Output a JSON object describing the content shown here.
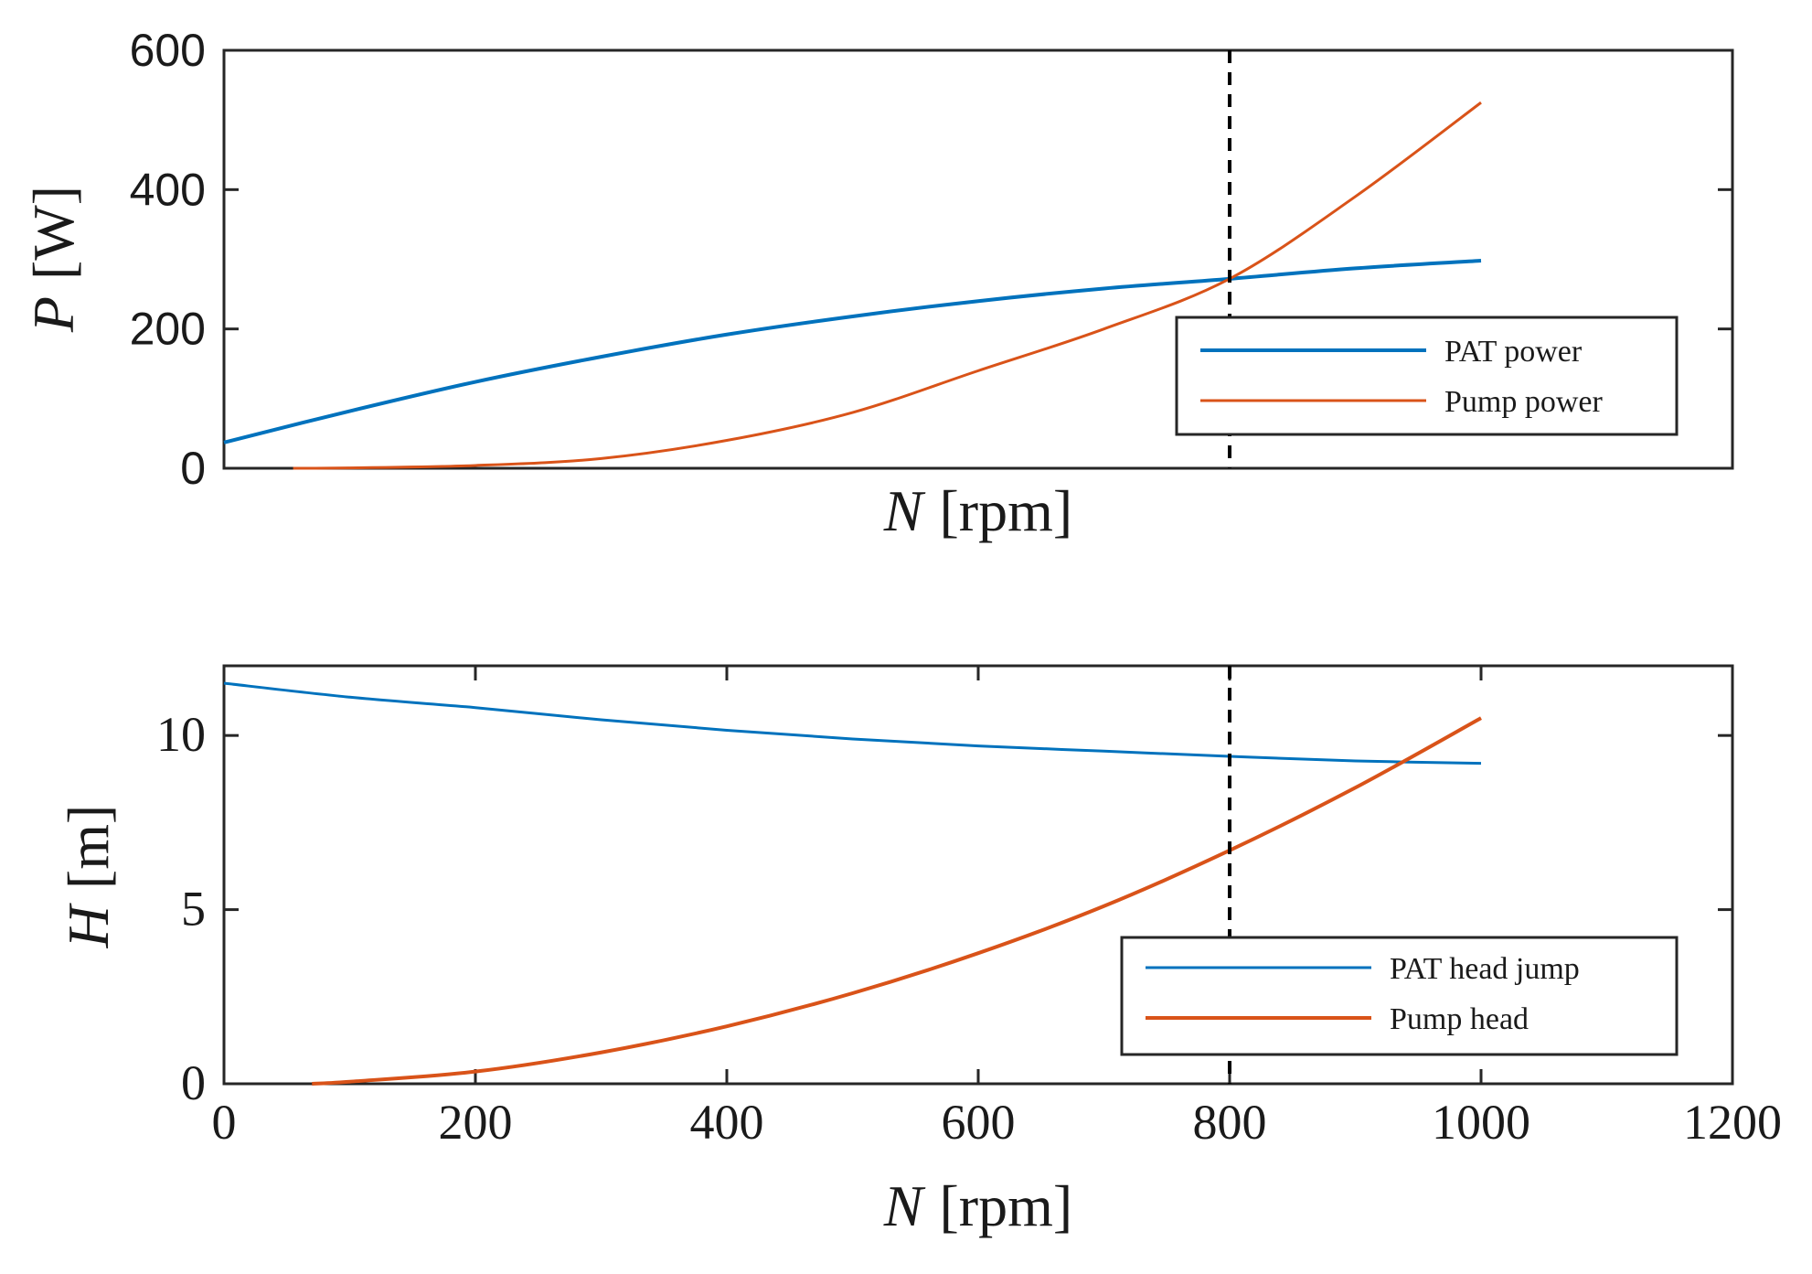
{
  "chart_data": [
    {
      "type": "line",
      "id": "power",
      "xlabel_var": "N",
      "xlabel_unit": "[rpm]",
      "ylabel_var": "P",
      "ylabel_unit": "[W]",
      "xlim": [
        0,
        1200
      ],
      "ylim": [
        0,
        600
      ],
      "xticks": [],
      "yticks": [
        0,
        200,
        400,
        600
      ],
      "ytick_labels": [
        "0",
        "200",
        "400",
        "600"
      ],
      "vline_x": 800,
      "legend_position": "lower-right",
      "series": [
        {
          "name": "PAT power",
          "color": "#0072BD",
          "x": [
            0,
            100,
            200,
            300,
            400,
            500,
            600,
            700,
            800,
            900,
            1000
          ],
          "y": [
            37,
            82,
            124,
            160,
            192,
            218,
            240,
            258,
            272,
            287,
            298
          ]
        },
        {
          "name": "Pump power",
          "color": "#D95319",
          "x": [
            55,
            100,
            200,
            300,
            400,
            500,
            600,
            700,
            800,
            900,
            1000
          ],
          "y": [
            0,
            0.5,
            4,
            14,
            40,
            80,
            140,
            200,
            272,
            390,
            525
          ]
        }
      ]
    },
    {
      "type": "line",
      "id": "head",
      "xlabel_var": "N",
      "xlabel_unit": "[rpm]",
      "ylabel_var": "H",
      "ylabel_unit": "[m]",
      "xlim": [
        0,
        1200
      ],
      "ylim": [
        0,
        12
      ],
      "xticks": [
        0,
        200,
        400,
        600,
        800,
        1000,
        1200
      ],
      "xtick_labels": [
        "0",
        "200",
        "400",
        "600",
        "800",
        "1000",
        "1200"
      ],
      "yticks": [
        0,
        5,
        10
      ],
      "ytick_labels": [
        "0",
        "5",
        "10"
      ],
      "vline_x": 800,
      "legend_position": "lower-right",
      "series": [
        {
          "name": "PAT head jump",
          "color": "#0072BD",
          "x": [
            0,
            100,
            200,
            300,
            400,
            500,
            600,
            700,
            800,
            900,
            1000
          ],
          "y": [
            11.5,
            11.1,
            10.8,
            10.45,
            10.15,
            9.9,
            9.7,
            9.55,
            9.4,
            9.27,
            9.2
          ]
        },
        {
          "name": "Pump head",
          "color": "#D95319",
          "x": [
            70,
            100,
            200,
            300,
            400,
            500,
            600,
            700,
            800,
            900,
            1000
          ],
          "y": [
            0,
            0.06,
            0.35,
            0.9,
            1.65,
            2.6,
            3.75,
            5.1,
            6.7,
            8.5,
            10.5
          ]
        }
      ]
    }
  ]
}
